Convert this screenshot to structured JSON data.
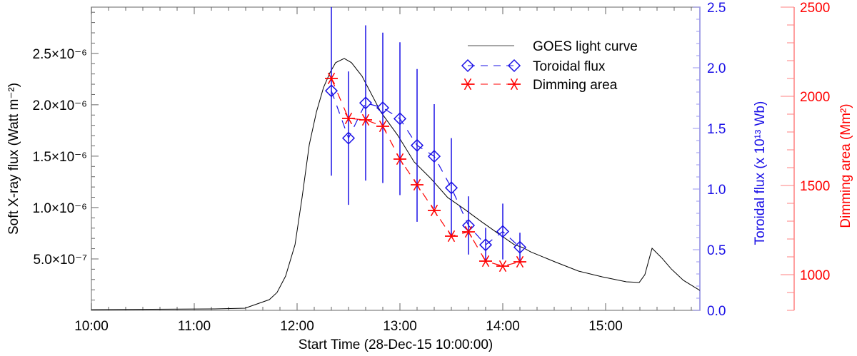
{
  "chart_data": {
    "type": "line",
    "xlabel": "Start Time (28-Dec-15 10:00:00)",
    "x_unit": "minutes after 10:00",
    "xlim": [
      0,
      355
    ],
    "x_ticks": [
      {
        "v": 0,
        "label": "10:00"
      },
      {
        "v": 60,
        "label": "11:00"
      },
      {
        "v": 120,
        "label": "12:00"
      },
      {
        "v": 180,
        "label": "13:00"
      },
      {
        "v": 240,
        "label": "14:00"
      },
      {
        "v": 300,
        "label": "15:00"
      }
    ],
    "axes": {
      "left": {
        "label": "Soft X-ray flux (Watt m⁻²)",
        "ylim": [
          0,
          2.95e-06
        ],
        "ticks": [
          {
            "v": 5e-07,
            "label": "5.0×10⁻⁷"
          },
          {
            "v": 1e-06,
            "label": "1.0×10⁻⁶"
          },
          {
            "v": 1.5e-06,
            "label": "1.5×10⁻⁶"
          },
          {
            "v": 2e-06,
            "label": "2.0×10⁻⁶"
          },
          {
            "v": 2.5e-06,
            "label": "2.5×10⁻⁶"
          }
        ],
        "color": "#000000"
      },
      "right_blue": {
        "label": "Toroidal flux (x 10¹³ Wb)",
        "ylim": [
          0,
          2.5
        ],
        "ticks": [
          {
            "v": 0,
            "label": "0.0"
          },
          {
            "v": 0.5,
            "label": "0.5"
          },
          {
            "v": 1,
            "label": "1.0"
          },
          {
            "v": 1.5,
            "label": "1.5"
          },
          {
            "v": 2,
            "label": "2.0"
          },
          {
            "v": 2.5,
            "label": "2.5"
          }
        ],
        "color": "#1a10e6"
      },
      "right_red": {
        "label": "Dimming area (Mm²)",
        "ylim": [
          800,
          2500
        ],
        "ticks": [
          {
            "v": 1000,
            "label": "1000"
          },
          {
            "v": 1500,
            "label": "1500"
          },
          {
            "v": 2000,
            "label": "2000"
          },
          {
            "v": 2500,
            "label": "2500"
          }
        ],
        "color": "#ff0000"
      }
    },
    "series": [
      {
        "name": "GOES light curve",
        "axis": "left",
        "color": "#000000",
        "x": [
          0,
          72,
          89.6,
          103.8,
          108.3,
          113.3,
          118.8,
          122.9,
          127.1,
          131.3,
          135.4,
          139.2,
          142.5,
          147.5,
          151.7,
          157.9,
          168.8,
          178.8,
          188.3,
          197.9,
          207.9,
          217.5,
          227.1,
          237.1,
          246.7,
          251.7,
          256.3,
          270.4,
          284.2,
          297.9,
          312.1,
          319.6,
          322.9,
          327.1,
          332.9,
          338.3,
          345.4,
          355
        ],
        "y": [
          7e-09,
          1.4e-08,
          2.1e-08,
          1.04e-07,
          1.74e-07,
          3.33e-07,
          6.39e-07,
          1.097e-06,
          1.611e-06,
          1.931e-06,
          2.167e-06,
          2.313e-06,
          2.41e-06,
          2.451e-06,
          2.41e-06,
          2.278e-06,
          1.931e-06,
          1.701e-06,
          1.444e-06,
          1.285e-06,
          1.097e-06,
          9.86e-07,
          8.68e-07,
          7.5e-07,
          6.39e-07,
          6.11e-07,
          5.69e-07,
          4.72e-07,
          3.82e-07,
          3.26e-07,
          2.78e-07,
          2.71e-07,
          3.47e-07,
          6.04e-07,
          5.07e-07,
          4.03e-07,
          2.92e-07,
          1.94e-07
        ]
      },
      {
        "name": "Toroidal flux",
        "axis": "right_blue",
        "color": "#1a10e6",
        "x": [
          140,
          150,
          160,
          170,
          180,
          190,
          200,
          210,
          220,
          230,
          240,
          250
        ],
        "y": [
          1.81,
          1.42,
          1.71,
          1.67,
          1.58,
          1.36,
          1.27,
          1.01,
          0.7,
          0.54,
          0.65,
          0.52
        ],
        "err": [
          0.7,
          0.55,
          0.64,
          0.62,
          0.63,
          0.63,
          0.43,
          0.41,
          0.24,
          0.14,
          0.23,
          0.12
        ]
      },
      {
        "name": "Dimming area",
        "axis": "right_red",
        "color": "#ff0000",
        "x": [
          140,
          150,
          160,
          170,
          180,
          190,
          200,
          210,
          220,
          230,
          240,
          250
        ],
        "y": [
          2100,
          1876,
          1868,
          1832,
          1648,
          1504,
          1360,
          1216,
          1240,
          1076,
          1048,
          1072
        ]
      }
    ],
    "legend": {
      "placement": "top-right",
      "entries": [
        "GOES light curve",
        "Toroidal flux",
        "Dimming area"
      ]
    }
  }
}
